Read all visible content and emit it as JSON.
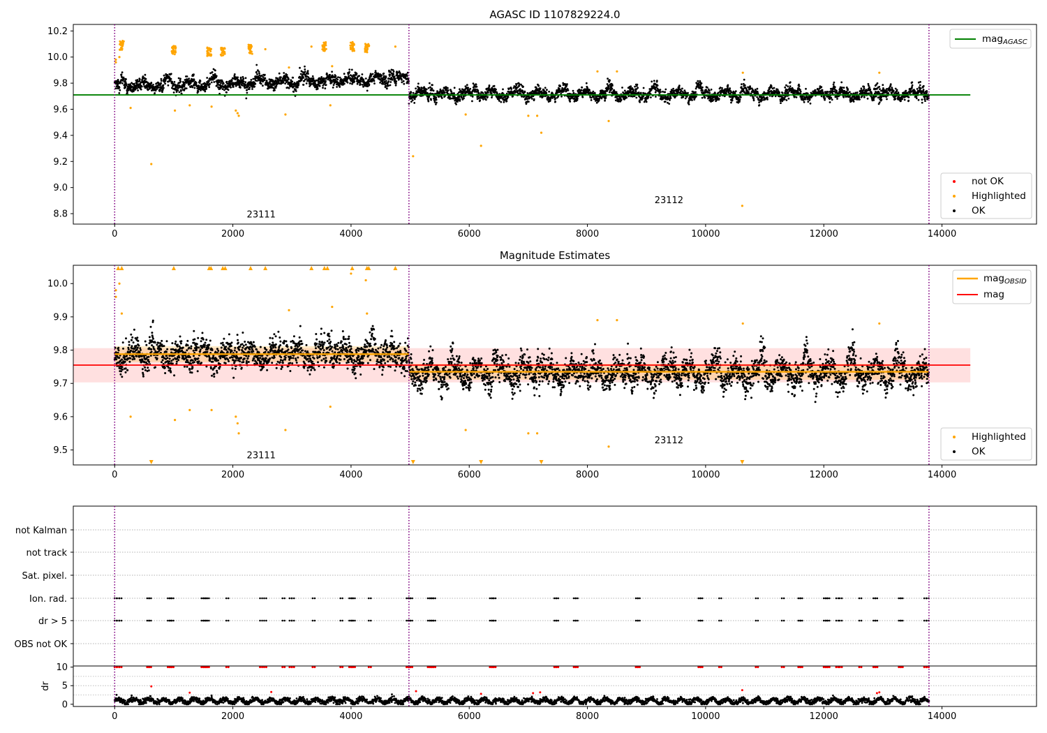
{
  "chart_data": [
    {
      "type": "scatter",
      "title": "AGASC ID 1107829224.0",
      "xlim": [
        -700,
        15600
      ],
      "ylim": [
        8.72,
        10.25
      ],
      "xticks": [
        0,
        2000,
        4000,
        6000,
        8000,
        10000,
        12000,
        14000
      ],
      "yticks": [
        8.8,
        9.0,
        9.2,
        9.4,
        9.6,
        9.8,
        10.0,
        10.2
      ],
      "vlines": [
        0,
        4980,
        13780
      ],
      "hlines": [
        {
          "name": "mag_AGASC",
          "y": 9.71,
          "x": [
            -700,
            14480
          ],
          "color": "#008000"
        }
      ],
      "legend_lines": {
        "position": "top-right",
        "entries": [
          {
            "main": "mag",
            "sub": "AGASC",
            "color": "#008000"
          }
        ]
      },
      "legend_points": {
        "position": "bottom-right",
        "entries": [
          {
            "label": "not OK",
            "color": "#ff0000"
          },
          {
            "label": "Highlighted",
            "color": "#ffa500"
          },
          {
            "label": "OK",
            "color": "#000000"
          }
        ]
      },
      "annotations": [
        {
          "text": "23111",
          "x": 2480,
          "y": 8.77
        },
        {
          "text": "23112",
          "x": 9380,
          "y": 8.88
        }
      ],
      "segments": [
        {
          "x": [
            0,
            4980
          ],
          "base": 9.775,
          "amp": 0.04,
          "noise": 0.035,
          "slope": 1.2e-05
        },
        {
          "x": [
            4980,
            13780
          ],
          "base": 9.715,
          "amp": 0.045,
          "noise": 0.03,
          "slope": 0.0
        }
      ],
      "highlighted_clusters": [
        [
          120,
          10.09
        ],
        [
          1000,
          10.05
        ],
        [
          1600,
          10.04
        ],
        [
          1830,
          10.04
        ],
        [
          2300,
          10.06
        ],
        [
          3550,
          10.08
        ],
        [
          4020,
          10.08
        ],
        [
          4270,
          10.07
        ]
      ],
      "highlighted": [
        [
          20,
          9.98
        ],
        [
          20,
          9.96
        ],
        [
          80,
          10.0
        ],
        [
          270,
          9.61
        ],
        [
          620,
          9.18
        ],
        [
          1020,
          9.59
        ],
        [
          1270,
          9.63
        ],
        [
          1640,
          9.62
        ],
        [
          2050,
          9.59
        ],
        [
          2080,
          9.57
        ],
        [
          2100,
          9.55
        ],
        [
          2550,
          10.06
        ],
        [
          2890,
          9.56
        ],
        [
          2950,
          9.92
        ],
        [
          3330,
          10.08
        ],
        [
          3650,
          9.63
        ],
        [
          3680,
          9.93
        ],
        [
          4750,
          10.08
        ],
        [
          5050,
          9.24
        ],
        [
          5940,
          9.56
        ],
        [
          6200,
          9.32
        ],
        [
          7000,
          9.55
        ],
        [
          7150,
          9.55
        ],
        [
          7220,
          9.42
        ],
        [
          8170,
          9.89
        ],
        [
          8360,
          9.51
        ],
        [
          8500,
          9.89
        ],
        [
          10620,
          8.86
        ],
        [
          10630,
          9.88
        ],
        [
          12940,
          9.88
        ]
      ]
    },
    {
      "type": "scatter",
      "title": "Magnitude Estimates",
      "xlim": [
        -700,
        15600
      ],
      "ylim": [
        9.455,
        10.055
      ],
      "xticks": [
        0,
        2000,
        4000,
        6000,
        8000,
        10000,
        12000,
        14000
      ],
      "yticks": [
        9.5,
        9.6,
        9.7,
        9.8,
        9.9,
        10.0
      ],
      "vlines": [
        0,
        4980,
        13780
      ],
      "hlines": [
        {
          "name": "mag",
          "y": 9.755,
          "x": [
            -700,
            14480
          ],
          "color": "#ff0000"
        },
        {
          "name": "mag_OBSID_23111",
          "y": 9.788,
          "x": [
            0,
            4980
          ],
          "color": "#ffa500"
        },
        {
          "name": "mag_OBSID_23112",
          "y": 9.735,
          "x": [
            4980,
            13780
          ],
          "color": "#ffa500"
        }
      ],
      "bands": [
        {
          "y": [
            9.703,
            9.806
          ],
          "x": [
            -700,
            14480
          ],
          "color": "#ff0000",
          "opacity": 0.12
        },
        {
          "y": [
            9.764,
            9.812
          ],
          "x": [
            0,
            4980
          ],
          "color": "#ffa500",
          "opacity": 0.22
        },
        {
          "y": [
            9.711,
            9.759
          ],
          "x": [
            4980,
            13780
          ],
          "color": "#ffa500",
          "opacity": 0.22
        }
      ],
      "legend_lines": {
        "position": "top-right",
        "entries": [
          {
            "main": "mag",
            "sub": "OBSID",
            "color": "#ffa500"
          },
          {
            "main": "mag",
            "sub": "",
            "color": "#ff0000"
          }
        ]
      },
      "legend_points": {
        "position": "bottom-right",
        "entries": [
          {
            "label": "Highlighted",
            "color": "#ffa500"
          },
          {
            "label": "OK",
            "color": "#000000"
          }
        ]
      },
      "annotations": [
        {
          "text": "23111",
          "x": 2480,
          "y": 9.475
        },
        {
          "text": "23112",
          "x": 9380,
          "y": 9.52
        }
      ],
      "segments": [
        {
          "x": [
            0,
            4980
          ],
          "base": 9.785,
          "amp": 0.035,
          "noise": 0.032,
          "slope": 0.0
        },
        {
          "x": [
            4980,
            13780
          ],
          "base": 9.73,
          "amp": 0.04,
          "noise": 0.03,
          "slope": 0.0
        }
      ],
      "up_triangles": [
        60,
        120,
        1000,
        1600,
        1630,
        1830,
        1870,
        2300,
        2550,
        3330,
        3550,
        3600,
        4020,
        4270,
        4300,
        4750
      ],
      "down_triangles": [
        620,
        5050,
        6200,
        7220,
        10620
      ],
      "highlighted": [
        [
          20,
          9.98
        ],
        [
          20,
          9.96
        ],
        [
          80,
          10.0
        ],
        [
          120,
          9.91
        ],
        [
          270,
          9.6
        ],
        [
          1020,
          9.59
        ],
        [
          1270,
          9.62
        ],
        [
          1640,
          9.62
        ],
        [
          2050,
          9.6
        ],
        [
          2080,
          9.58
        ],
        [
          2100,
          9.55
        ],
        [
          2890,
          9.56
        ],
        [
          2950,
          9.92
        ],
        [
          3650,
          9.63
        ],
        [
          3680,
          9.93
        ],
        [
          4000,
          10.03
        ],
        [
          4250,
          10.01
        ],
        [
          4270,
          9.91
        ],
        [
          5940,
          9.56
        ],
        [
          7000,
          9.55
        ],
        [
          7150,
          9.55
        ],
        [
          8170,
          9.89
        ],
        [
          8360,
          9.51
        ],
        [
          8500,
          9.89
        ],
        [
          10630,
          9.88
        ],
        [
          12940,
          9.88
        ]
      ]
    },
    {
      "type": "scatter",
      "title": "",
      "xlim": [
        -700,
        15600
      ],
      "categories": [
        "not Kalman",
        "not track",
        "Sat. pixel.",
        "Ion. rad.",
        "dr > 5",
        "OBS not OK"
      ],
      "vlines": [
        0,
        4980,
        13780
      ],
      "flag_x": [
        0,
        40,
        80,
        550,
        580,
        900,
        930,
        960,
        1470,
        1500,
        1530,
        1560,
        1890,
        2460,
        2530,
        2840,
        2960,
        3000,
        3350,
        3820,
        3970,
        4000,
        4030,
        4300,
        4940,
        4970,
        5000,
        5300,
        5330,
        5360,
        5390,
        6350,
        6380,
        6410,
        7440,
        7470,
        7770,
        7800,
        8820,
        8850,
        9880,
        9910,
        10230,
        10850,
        11290,
        11570,
        11600,
        12000,
        12030,
        12060,
        12210,
        12270,
        12600,
        12840,
        12870,
        13270,
        13300,
        13700,
        13740
      ]
    },
    {
      "type": "scatter",
      "title": "",
      "ylabel": "dr",
      "xlim": [
        -700,
        15600
      ],
      "ylim": [
        -0.6,
        10.3
      ],
      "xticks": [
        0,
        2000,
        4000,
        6000,
        8000,
        10000,
        12000,
        14000
      ],
      "yticks": [
        0,
        5,
        10
      ],
      "vlines": [
        0,
        4980,
        13780
      ],
      "outliers": [
        [
          620,
          4.8
        ],
        [
          1270,
          3.1
        ],
        [
          2650,
          3.3
        ],
        [
          5100,
          3.5
        ],
        [
          6200,
          2.8
        ],
        [
          7080,
          3.0
        ],
        [
          7200,
          3.2
        ],
        [
          10620,
          3.8
        ],
        [
          12900,
          3.0
        ],
        [
          12940,
          3.2
        ]
      ]
    }
  ]
}
